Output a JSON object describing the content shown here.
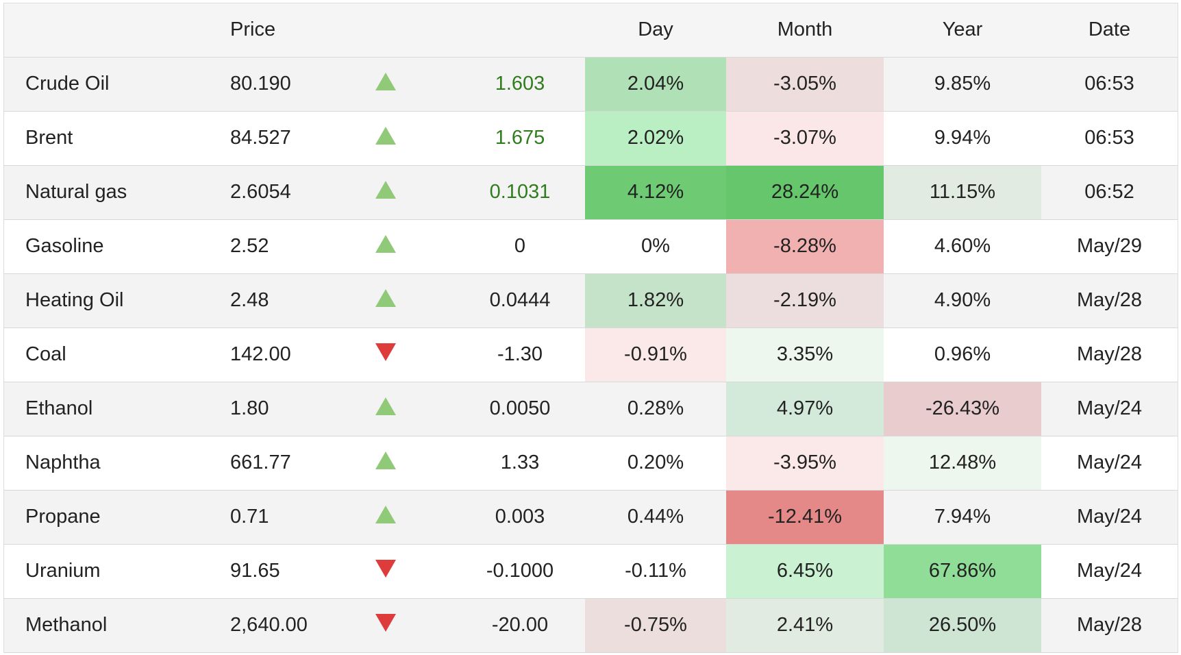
{
  "headers": {
    "name": "",
    "price": "Price",
    "arrow": "",
    "change": "",
    "day": "Day",
    "month": "Month",
    "year": "Year",
    "date": "Date"
  },
  "colors": {
    "up_arrow": "#90c978",
    "down_arrow": "#de3b3b",
    "positive_change_text": "#2f7d1c"
  },
  "rows": [
    {
      "name": "Crude Oil",
      "price": "80.190",
      "direction": "up",
      "direction_icon": "up-arrow-icon",
      "change": "1.603",
      "change_positive": true,
      "day": "2.04%",
      "day_bg": "#b0e0b5",
      "month": "-3.05%",
      "month_bg": "#eddddd",
      "year": "9.85%",
      "year_bg": "",
      "date": "06:53"
    },
    {
      "name": "Brent",
      "price": "84.527",
      "direction": "up",
      "direction_icon": "up-arrow-icon",
      "change": "1.675",
      "change_positive": true,
      "day": "2.02%",
      "day_bg": "#b9efc2",
      "month": "-3.07%",
      "month_bg": "#fbe7e8",
      "year": "9.94%",
      "year_bg": "",
      "date": "06:53"
    },
    {
      "name": "Natural gas",
      "price": "2.6054",
      "direction": "up",
      "direction_icon": "up-arrow-icon",
      "change": "0.1031",
      "change_positive": true,
      "day": "4.12%",
      "day_bg": "#6ecb73",
      "month": "28.24%",
      "month_bg": "#66c66c",
      "year": "11.15%",
      "year_bg": "#e1ebe1",
      "date": "06:52"
    },
    {
      "name": "Gasoline",
      "price": "2.52",
      "direction": "up",
      "direction_icon": "up-arrow-icon",
      "change": "0",
      "change_positive": false,
      "day": "0%",
      "day_bg": "",
      "month": "-8.28%",
      "month_bg": "#f2b1b1",
      "year": "4.60%",
      "year_bg": "",
      "date": "May/29"
    },
    {
      "name": "Heating Oil",
      "price": "2.48",
      "direction": "up",
      "direction_icon": "up-arrow-icon",
      "change": "0.0444",
      "change_positive": false,
      "day": "1.82%",
      "day_bg": "#c5e3c8",
      "month": "-2.19%",
      "month_bg": "#ecdede",
      "year": "4.90%",
      "year_bg": "",
      "date": "May/28"
    },
    {
      "name": "Coal",
      "price": "142.00",
      "direction": "down",
      "direction_icon": "down-arrow-icon",
      "change": "-1.30",
      "change_positive": false,
      "day": "-0.91%",
      "day_bg": "#fbe8e8",
      "month": "3.35%",
      "month_bg": "#edf7ee",
      "year": "0.96%",
      "year_bg": "",
      "date": "May/28"
    },
    {
      "name": "Ethanol",
      "price": "1.80",
      "direction": "up",
      "direction_icon": "up-arrow-icon",
      "change": "0.0050",
      "change_positive": false,
      "day": "0.28%",
      "day_bg": "",
      "month": "4.97%",
      "month_bg": "#d3eadb",
      "year": "-26.43%",
      "year_bg": "#e9cccd",
      "date": "May/24"
    },
    {
      "name": "Naphtha",
      "price": "661.77",
      "direction": "up",
      "direction_icon": "up-arrow-icon",
      "change": "1.33",
      "change_positive": false,
      "day": "0.20%",
      "day_bg": "",
      "month": "-3.95%",
      "month_bg": "#fbe8e8",
      "year": "12.48%",
      "year_bg": "#edf7ee",
      "date": "May/24"
    },
    {
      "name": "Propane",
      "price": "0.71",
      "direction": "up",
      "direction_icon": "up-arrow-icon",
      "change": "0.003",
      "change_positive": false,
      "day": "0.44%",
      "day_bg": "",
      "month": "-12.41%",
      "month_bg": "#e58888",
      "year": "7.94%",
      "year_bg": "",
      "date": "May/24"
    },
    {
      "name": "Uranium",
      "price": "91.65",
      "direction": "down",
      "direction_icon": "down-arrow-icon",
      "change": "-0.1000",
      "change_positive": false,
      "day": "-0.11%",
      "day_bg": "",
      "month": "6.45%",
      "month_bg": "#cbf1d3",
      "year": "67.86%",
      "year_bg": "#8fdd96",
      "date": "May/24"
    },
    {
      "name": "Methanol",
      "price": "2,640.00",
      "direction": "down",
      "direction_icon": "down-arrow-icon",
      "change": "-20.00",
      "change_positive": false,
      "day": "-0.75%",
      "day_bg": "#eddede",
      "month": "2.41%",
      "month_bg": "#e2ebe2",
      "year": "26.50%",
      "year_bg": "#cfe5d4",
      "date": "May/28"
    }
  ]
}
